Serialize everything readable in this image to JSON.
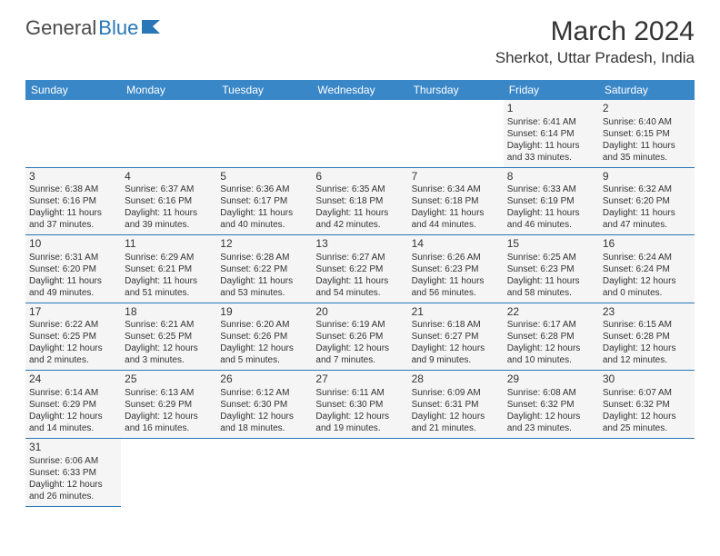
{
  "logo": {
    "general": "General",
    "blue": "Blue"
  },
  "title": "March 2024",
  "location": "Sherkot, Uttar Pradesh, India",
  "colors": {
    "header_bg": "#3a87c8",
    "header_fg": "#ffffff",
    "cell_bg": "#f5f5f5",
    "border": "#2877b8",
    "text": "#333333"
  },
  "day_headers": [
    "Sunday",
    "Monday",
    "Tuesday",
    "Wednesday",
    "Thursday",
    "Friday",
    "Saturday"
  ],
  "weeks": [
    [
      null,
      null,
      null,
      null,
      null,
      {
        "day": "1",
        "sunrise": "Sunrise: 6:41 AM",
        "sunset": "Sunset: 6:14 PM",
        "daylight": "Daylight: 11 hours and 33 minutes."
      },
      {
        "day": "2",
        "sunrise": "Sunrise: 6:40 AM",
        "sunset": "Sunset: 6:15 PM",
        "daylight": "Daylight: 11 hours and 35 minutes."
      }
    ],
    [
      {
        "day": "3",
        "sunrise": "Sunrise: 6:38 AM",
        "sunset": "Sunset: 6:16 PM",
        "daylight": "Daylight: 11 hours and 37 minutes."
      },
      {
        "day": "4",
        "sunrise": "Sunrise: 6:37 AM",
        "sunset": "Sunset: 6:16 PM",
        "daylight": "Daylight: 11 hours and 39 minutes."
      },
      {
        "day": "5",
        "sunrise": "Sunrise: 6:36 AM",
        "sunset": "Sunset: 6:17 PM",
        "daylight": "Daylight: 11 hours and 40 minutes."
      },
      {
        "day": "6",
        "sunrise": "Sunrise: 6:35 AM",
        "sunset": "Sunset: 6:18 PM",
        "daylight": "Daylight: 11 hours and 42 minutes."
      },
      {
        "day": "7",
        "sunrise": "Sunrise: 6:34 AM",
        "sunset": "Sunset: 6:18 PM",
        "daylight": "Daylight: 11 hours and 44 minutes."
      },
      {
        "day": "8",
        "sunrise": "Sunrise: 6:33 AM",
        "sunset": "Sunset: 6:19 PM",
        "daylight": "Daylight: 11 hours and 46 minutes."
      },
      {
        "day": "9",
        "sunrise": "Sunrise: 6:32 AM",
        "sunset": "Sunset: 6:20 PM",
        "daylight": "Daylight: 11 hours and 47 minutes."
      }
    ],
    [
      {
        "day": "10",
        "sunrise": "Sunrise: 6:31 AM",
        "sunset": "Sunset: 6:20 PM",
        "daylight": "Daylight: 11 hours and 49 minutes."
      },
      {
        "day": "11",
        "sunrise": "Sunrise: 6:29 AM",
        "sunset": "Sunset: 6:21 PM",
        "daylight": "Daylight: 11 hours and 51 minutes."
      },
      {
        "day": "12",
        "sunrise": "Sunrise: 6:28 AM",
        "sunset": "Sunset: 6:22 PM",
        "daylight": "Daylight: 11 hours and 53 minutes."
      },
      {
        "day": "13",
        "sunrise": "Sunrise: 6:27 AM",
        "sunset": "Sunset: 6:22 PM",
        "daylight": "Daylight: 11 hours and 54 minutes."
      },
      {
        "day": "14",
        "sunrise": "Sunrise: 6:26 AM",
        "sunset": "Sunset: 6:23 PM",
        "daylight": "Daylight: 11 hours and 56 minutes."
      },
      {
        "day": "15",
        "sunrise": "Sunrise: 6:25 AM",
        "sunset": "Sunset: 6:23 PM",
        "daylight": "Daylight: 11 hours and 58 minutes."
      },
      {
        "day": "16",
        "sunrise": "Sunrise: 6:24 AM",
        "sunset": "Sunset: 6:24 PM",
        "daylight": "Daylight: 12 hours and 0 minutes."
      }
    ],
    [
      {
        "day": "17",
        "sunrise": "Sunrise: 6:22 AM",
        "sunset": "Sunset: 6:25 PM",
        "daylight": "Daylight: 12 hours and 2 minutes."
      },
      {
        "day": "18",
        "sunrise": "Sunrise: 6:21 AM",
        "sunset": "Sunset: 6:25 PM",
        "daylight": "Daylight: 12 hours and 3 minutes."
      },
      {
        "day": "19",
        "sunrise": "Sunrise: 6:20 AM",
        "sunset": "Sunset: 6:26 PM",
        "daylight": "Daylight: 12 hours and 5 minutes."
      },
      {
        "day": "20",
        "sunrise": "Sunrise: 6:19 AM",
        "sunset": "Sunset: 6:26 PM",
        "daylight": "Daylight: 12 hours and 7 minutes."
      },
      {
        "day": "21",
        "sunrise": "Sunrise: 6:18 AM",
        "sunset": "Sunset: 6:27 PM",
        "daylight": "Daylight: 12 hours and 9 minutes."
      },
      {
        "day": "22",
        "sunrise": "Sunrise: 6:17 AM",
        "sunset": "Sunset: 6:28 PM",
        "daylight": "Daylight: 12 hours and 10 minutes."
      },
      {
        "day": "23",
        "sunrise": "Sunrise: 6:15 AM",
        "sunset": "Sunset: 6:28 PM",
        "daylight": "Daylight: 12 hours and 12 minutes."
      }
    ],
    [
      {
        "day": "24",
        "sunrise": "Sunrise: 6:14 AM",
        "sunset": "Sunset: 6:29 PM",
        "daylight": "Daylight: 12 hours and 14 minutes."
      },
      {
        "day": "25",
        "sunrise": "Sunrise: 6:13 AM",
        "sunset": "Sunset: 6:29 PM",
        "daylight": "Daylight: 12 hours and 16 minutes."
      },
      {
        "day": "26",
        "sunrise": "Sunrise: 6:12 AM",
        "sunset": "Sunset: 6:30 PM",
        "daylight": "Daylight: 12 hours and 18 minutes."
      },
      {
        "day": "27",
        "sunrise": "Sunrise: 6:11 AM",
        "sunset": "Sunset: 6:30 PM",
        "daylight": "Daylight: 12 hours and 19 minutes."
      },
      {
        "day": "28",
        "sunrise": "Sunrise: 6:09 AM",
        "sunset": "Sunset: 6:31 PM",
        "daylight": "Daylight: 12 hours and 21 minutes."
      },
      {
        "day": "29",
        "sunrise": "Sunrise: 6:08 AM",
        "sunset": "Sunset: 6:32 PM",
        "daylight": "Daylight: 12 hours and 23 minutes."
      },
      {
        "day": "30",
        "sunrise": "Sunrise: 6:07 AM",
        "sunset": "Sunset: 6:32 PM",
        "daylight": "Daylight: 12 hours and 25 minutes."
      }
    ],
    [
      {
        "day": "31",
        "sunrise": "Sunrise: 6:06 AM",
        "sunset": "Sunset: 6:33 PM",
        "daylight": "Daylight: 12 hours and 26 minutes."
      },
      null,
      null,
      null,
      null,
      null,
      null
    ]
  ]
}
